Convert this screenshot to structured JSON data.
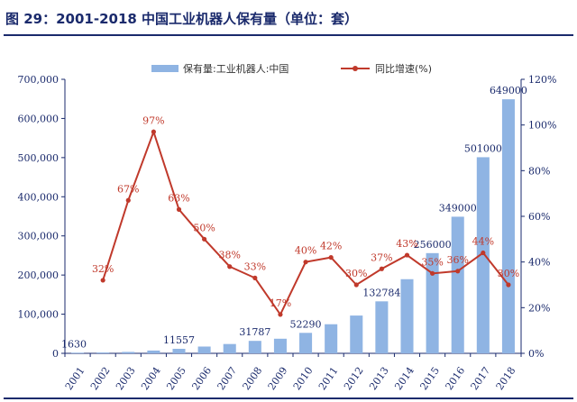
{
  "header": {
    "title": "图 29：2001-2018 中国工业机器人保有量（单位：套）"
  },
  "colors": {
    "bar": "#8fb4e3",
    "line": "#c0392b",
    "axis": "#1a2a6c",
    "title": "#1a2a6c"
  },
  "chart_data": {
    "type": "bar",
    "title": "2001-2018 中国工业机器人保有量（单位：套）",
    "categories": [
      "2001",
      "2002",
      "2003",
      "2004",
      "2005",
      "2006",
      "2007",
      "2008",
      "2009",
      "2010",
      "2011",
      "2012",
      "2013",
      "2014",
      "2015",
      "2016",
      "2017",
      "2018"
    ],
    "legend": {
      "bar": "保有量:工业机器人:中国",
      "line": "同比增速(%)",
      "placement": "top-center"
    },
    "series": [
      {
        "name": "保有量:工业机器人:中国",
        "type": "bar",
        "axis": "left",
        "values": [
          1630,
          2150,
          3600,
          7100,
          11557,
          17300,
          23800,
          31787,
          37300,
          52290,
          74300,
          96500,
          132784,
          189400,
          256000,
          349000,
          501000,
          649000
        ]
      },
      {
        "name": "同比增速(%)",
        "type": "line",
        "axis": "right",
        "values": [
          null,
          32,
          67,
          97,
          63,
          50,
          38,
          33,
          17,
          40,
          42,
          30,
          37,
          43,
          35,
          36,
          44,
          30
        ]
      }
    ],
    "bar_labels": [
      {
        "index": 0,
        "text": "1630"
      },
      {
        "index": 4,
        "text": "11557"
      },
      {
        "index": 7,
        "text": "31787"
      },
      {
        "index": 9,
        "text": "52290"
      },
      {
        "index": 12,
        "text": "132784"
      },
      {
        "index": 14,
        "text": "256000"
      },
      {
        "index": 15,
        "text": "349000"
      },
      {
        "index": 16,
        "text": "501000"
      },
      {
        "index": 17,
        "text": "649000"
      }
    ],
    "line_labels": [
      "",
      "32%",
      "67%",
      "97%",
      "63%",
      "50%",
      "38%",
      "33%",
      "17%",
      "40%",
      "42%",
      "30%",
      "37%",
      "43%",
      "35%",
      "36%",
      "44%",
      "30%"
    ],
    "y_left": {
      "ylim": [
        0,
        700000
      ],
      "ticks": [
        "0",
        "100,000",
        "200,000",
        "300,000",
        "400,000",
        "500,000",
        "600,000",
        "700,000"
      ]
    },
    "y_right": {
      "ylim": [
        0,
        120
      ],
      "ticks": [
        "0%",
        "20%",
        "40%",
        "60%",
        "80%",
        "100%",
        "120%"
      ]
    },
    "xlabel": "",
    "ylabel": "",
    "grid": false
  }
}
